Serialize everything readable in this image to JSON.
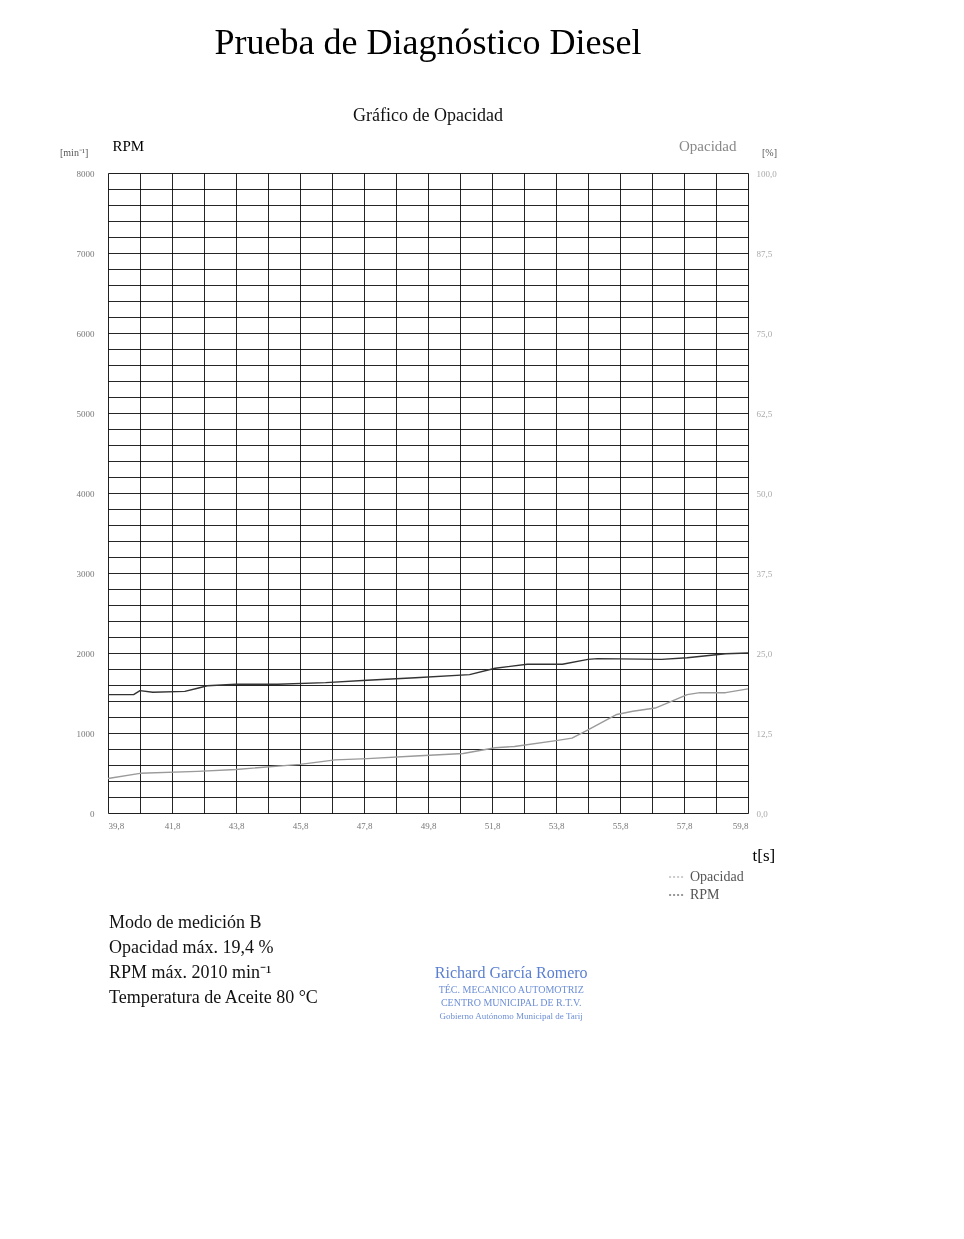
{
  "chart_data": {
    "type": "line",
    "title": "Prueba de Diagnóstico Diesel",
    "subtitle": "Gráfico de Opacidad",
    "xlabel": "t[s]",
    "ylabel": "RPM",
    "y2label": "Opacidad",
    "xlim": [
      39.8,
      59.8
    ],
    "xticks": [
      {
        "value": 39.8,
        "label": "39,8"
      },
      {
        "value": 40.8,
        "label": null
      },
      {
        "value": 41.8,
        "label": "41,8"
      },
      {
        "value": 42.8,
        "label": null
      },
      {
        "value": 43.8,
        "label": "43,8"
      },
      {
        "value": 44.8,
        "label": null
      },
      {
        "value": 45.8,
        "label": "45,8"
      },
      {
        "value": 46.8,
        "label": null
      },
      {
        "value": 47.8,
        "label": "47,8"
      },
      {
        "value": 48.8,
        "label": null
      },
      {
        "value": 49.8,
        "label": "49,8"
      },
      {
        "value": 50.8,
        "label": null
      },
      {
        "value": 51.8,
        "label": "51,8"
      },
      {
        "value": 52.8,
        "label": null
      },
      {
        "value": 53.8,
        "label": "53,8"
      },
      {
        "value": 54.8,
        "label": null
      },
      {
        "value": 55.8,
        "label": "55,8"
      },
      {
        "value": 56.8,
        "label": null
      },
      {
        "value": 57.8,
        "label": "57,8"
      },
      {
        "value": 58.8,
        "label": null
      },
      {
        "value": 59.8,
        "label": "59,8"
      }
    ],
    "ylim": [
      0,
      8000
    ],
    "yticks": [
      0,
      {
        "value": 200,
        "label": null
      },
      {
        "value": 400,
        "label": null
      },
      {
        "value": 600,
        "label": null
      },
      {
        "value": 800,
        "label": null
      },
      1000,
      {
        "value": 1200,
        "label": null
      },
      {
        "value": 1400,
        "label": null
      },
      {
        "value": 1600,
        "label": null
      },
      {
        "value": 1800,
        "label": null
      },
      2000,
      {
        "value": 2200,
        "label": null
      },
      {
        "value": 2400,
        "label": null
      },
      {
        "value": 2600,
        "label": null
      },
      {
        "value": 2800,
        "label": null
      },
      3000,
      {
        "value": 3200,
        "label": null
      },
      {
        "value": 3400,
        "label": null
      },
      {
        "value": 3600,
        "label": null
      },
      {
        "value": 3800,
        "label": null
      },
      4000,
      {
        "value": 4200,
        "label": null
      },
      {
        "value": 4400,
        "label": null
      },
      {
        "value": 4600,
        "label": null
      },
      {
        "value": 4800,
        "label": null
      },
      5000,
      {
        "value": 5200,
        "label": null
      },
      {
        "value": 5400,
        "label": null
      },
      {
        "value": 5600,
        "label": null
      },
      {
        "value": 5800,
        "label": null
      },
      6000,
      {
        "value": 6200,
        "label": null
      },
      {
        "value": 6400,
        "label": null
      },
      {
        "value": 6600,
        "label": null
      },
      {
        "value": 6800,
        "label": null
      },
      7000,
      {
        "value": 7200,
        "label": null
      },
      {
        "value": 7400,
        "label": null
      },
      {
        "value": 7600,
        "label": null
      },
      {
        "value": 7800,
        "label": null
      },
      8000
    ],
    "y2lim": [
      0,
      100
    ],
    "y2ticks": [
      {
        "value": 0,
        "label": "0,0"
      },
      {
        "value": 12.5,
        "label": "12,5"
      },
      {
        "value": 25,
        "label": "25,0"
      },
      {
        "value": 37.5,
        "label": "37,5"
      },
      {
        "value": 50,
        "label": "50,0"
      },
      {
        "value": 62.5,
        "label": "62,5"
      },
      {
        "value": 75,
        "label": "75,0"
      },
      {
        "value": 87.5,
        "label": "87,5"
      },
      {
        "value": 100,
        "label": "100,0"
      }
    ],
    "grid": true,
    "legend": "bottom right",
    "line_style": "solid",
    "series": [
      {
        "name": "Opacidad",
        "color": "#9a9a9a",
        "axis": "y2",
        "x": [
          39.8,
          40.8,
          42.6,
          43.8,
          45.8,
          46.9,
          47.9,
          49.4,
          50.9,
          51.9,
          52.5,
          53.8,
          54.3,
          54.8,
          55.7,
          56.2,
          56.9,
          57.2,
          57.9,
          58.3,
          59.1,
          59.8
        ],
        "values": [
          5.4,
          6.2,
          6.5,
          6.8,
          7.6,
          8.3,
          8.5,
          8.9,
          9.3,
          10.2,
          10.4,
          11.3,
          11.7,
          13.0,
          15.4,
          15.9,
          16.4,
          17.0,
          18.5,
          18.8,
          18.8,
          19.4
        ]
      },
      {
        "name": "RPM",
        "color": "#333333",
        "axis": "y",
        "x": [
          39.8,
          40.6,
          40.8,
          41.2,
          42.2,
          42.6,
          42.9,
          43.8,
          45.1,
          46.6,
          47.9,
          49.4,
          51.1,
          51.9,
          52.9,
          54.0,
          54.8,
          55.1,
          57.1,
          57.9,
          59.1,
          59.8
        ],
        "values": [
          1480,
          1480,
          1530,
          1510,
          1520,
          1560,
          1590,
          1610,
          1610,
          1630,
          1660,
          1690,
          1730,
          1810,
          1860,
          1860,
          1920,
          1930,
          1920,
          1940,
          1990,
          2000
        ]
      }
    ],
    "annotations": [
      "[min⁻¹]",
      "[%]",
      "Modo de medición B",
      "Opacidad máx.            19,4   %",
      "RPM máx.                   2010   min⁻¹",
      "Temperatura de Aceite   80    °C",
      "Richard García Romero",
      "TÉC. MECANICO AUTOMOTRIZ",
      "CENTRO MUNICIPAL DE R.T.V.",
      "Gobierno Autónomo Municipal de Tarij"
    ]
  }
}
